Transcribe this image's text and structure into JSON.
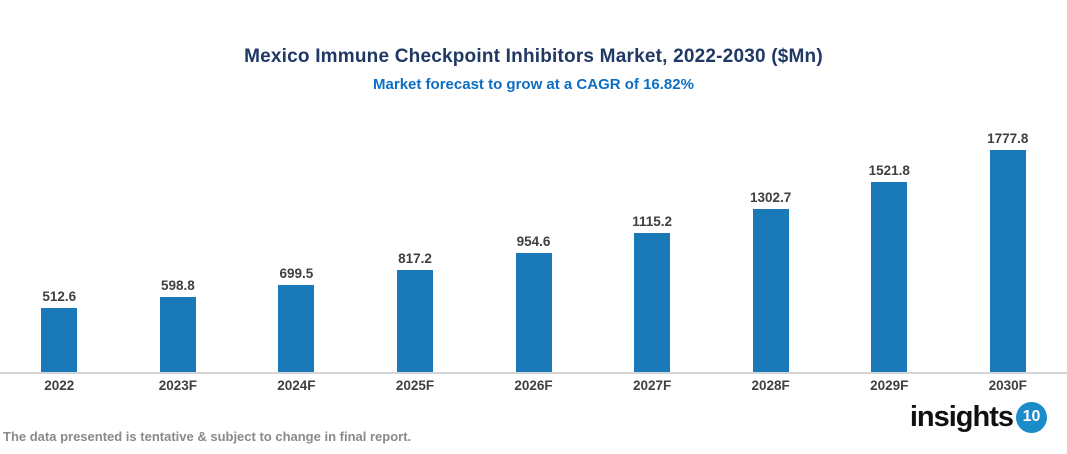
{
  "chart": {
    "title": "Mexico Immune Checkpoint Inhibitors Market, 2022-2030 ($Mn)",
    "subtitle": "Market forecast to grow at a CAGR of 16.82%"
  },
  "chart_data": {
    "type": "bar",
    "categories": [
      "2022",
      "2023F",
      "2024F",
      "2025F",
      "2026F",
      "2027F",
      "2028F",
      "2029F",
      "2030F"
    ],
    "values": [
      512.6,
      598.8,
      699.5,
      817.2,
      954.6,
      1115.2,
      1302.7,
      1521.8,
      1777.8
    ],
    "title": "Mexico Immune Checkpoint Inhibitors Market, 2022-2030 ($Mn)",
    "subtitle": "Market forecast to grow at a CAGR of 16.82%",
    "xlabel": "",
    "ylabel": "",
    "ylim": [
      0,
      1900
    ],
    "grid": false,
    "legend": false,
    "value_labels": true,
    "bar_color": "#1A7AB9"
  },
  "footer": {
    "note": "The data presented is tentative & subject to change in final report."
  },
  "logo": {
    "text": "insights",
    "badge": "10",
    "badge_color": "#1B8BC9"
  },
  "colors": {
    "title": "#1F3864",
    "subtitle": "#0D6EC3",
    "bar": "#1A7AB9",
    "data_label": "#3F3F3F",
    "axis_label": "#404040",
    "axis_line": "#D5D5D5",
    "footer": "#8A8A8A"
  }
}
